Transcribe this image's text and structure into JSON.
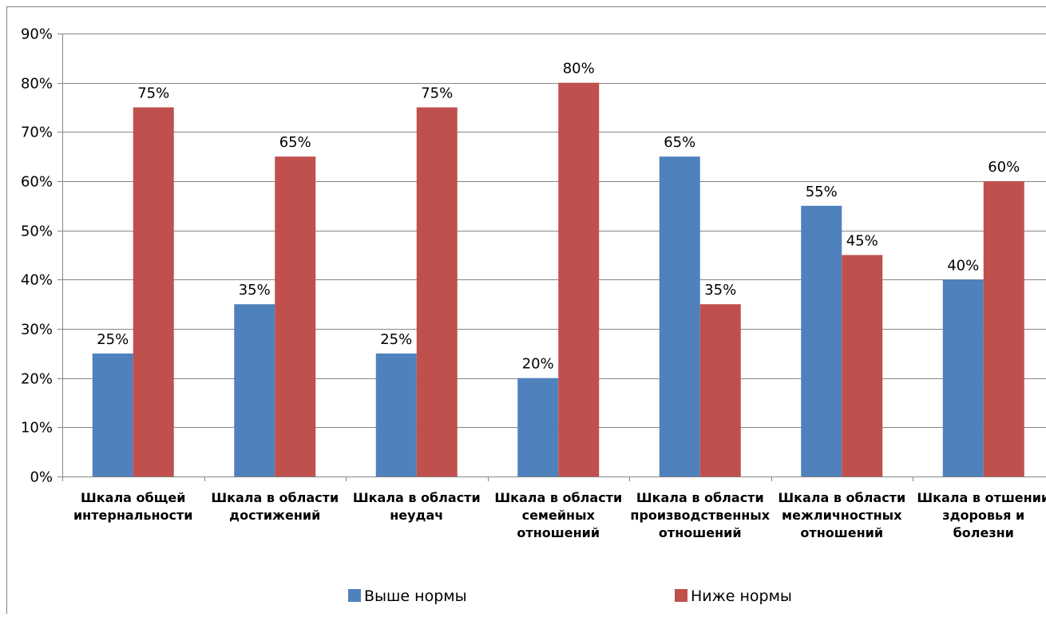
{
  "chart_data": {
    "type": "bar",
    "title": "",
    "xlabel": "",
    "ylabel": "",
    "ylim": [
      0,
      90
    ],
    "ytick_step": 10,
    "ytick_format": "percent",
    "grid": true,
    "legend_position": "bottom",
    "categories": [
      [
        "Шкала общей",
        "интернальности"
      ],
      [
        "Шкала в области",
        "достижений"
      ],
      [
        "Шкала в области",
        "неудач"
      ],
      [
        "Шкала в области",
        "семейных",
        "отношений"
      ],
      [
        "Шкала в области",
        "производственных",
        "отношений"
      ],
      [
        "Шкала в области",
        "межличностных",
        "отношений"
      ],
      [
        "Шкала  в отшении",
        "здоровья и",
        "болезни"
      ]
    ],
    "series": [
      {
        "name": "Выше нормы",
        "color": "#4F81BD",
        "values": [
          25,
          35,
          25,
          20,
          65,
          55,
          40
        ]
      },
      {
        "name": "Ниже нормы",
        "color": "#C0504D",
        "values": [
          75,
          65,
          75,
          80,
          35,
          45,
          60
        ]
      }
    ]
  }
}
